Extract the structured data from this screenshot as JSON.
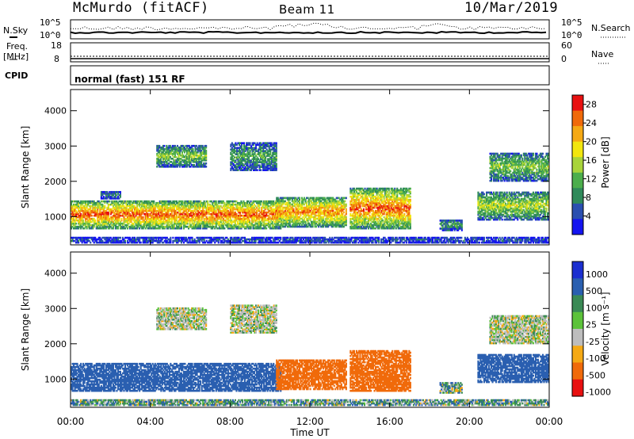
{
  "header": {
    "station": "McMurdo (fitACF)",
    "beam": "Beam 11",
    "date": "10/Mar/2019"
  },
  "top_panels": {
    "nsky_label": "N.Sky",
    "nsky_top_tick": "10^5",
    "nsky_bottom_tick": "10^0",
    "nsearch_label": "N.Search",
    "nsearch_top_tick": "10^5",
    "nsearch_bottom_tick": "10^0",
    "freq_label_1": "Freq.",
    "freq_label_2": "[MHz]",
    "freq_ticks": [
      "18",
      "8"
    ],
    "nave_label": "Nave",
    "nave_ticks": [
      "60",
      "0"
    ],
    "cpid_label": "CPID",
    "cpid_text": "normal (fast) 151 RF"
  },
  "chart_data": [
    {
      "type": "heatmap",
      "title": "",
      "xlabel": "Time UT",
      "ylabel": "Slant Range [km]",
      "x_ticks": [
        "00:00",
        "04:00",
        "08:00",
        "12:00",
        "16:00",
        "20:00",
        "00:00"
      ],
      "x_range_hours": [
        0,
        24
      ],
      "ylim": [
        200,
        4600
      ],
      "y_ticks": [
        1000,
        2000,
        3000,
        4000
      ],
      "colorbar": {
        "label": "Power [dB]",
        "ticks": [
          4,
          8,
          12,
          16,
          20,
          24,
          28
        ],
        "range": [
          0,
          30
        ],
        "colors": [
          "#1414f0",
          "#2a4fb0",
          "#2f8a5a",
          "#4cae4c",
          "#a8d43a",
          "#f2e60e",
          "#f5a914",
          "#f06a0a",
          "#e81010"
        ]
      },
      "echo_regions": [
        {
          "t0": 0.0,
          "t1": 10.5,
          "rmin": 650,
          "rmax": 1450,
          "level": 24
        },
        {
          "t0": 10.3,
          "t1": 13.8,
          "rmin": 700,
          "rmax": 1550,
          "level": 22
        },
        {
          "t0": 14.0,
          "t1": 17.0,
          "rmin": 650,
          "rmax": 1800,
          "level": 24
        },
        {
          "t0": 18.5,
          "t1": 19.6,
          "rmin": 600,
          "rmax": 900,
          "level": 10
        },
        {
          "t0": 20.4,
          "t1": 24.0,
          "rmin": 900,
          "rmax": 1700,
          "level": 15
        },
        {
          "t0": 1.5,
          "t1": 2.5,
          "rmin": 1500,
          "rmax": 1700,
          "level": 8
        },
        {
          "t0": 4.3,
          "t1": 6.8,
          "rmin": 2400,
          "rmax": 3000,
          "level": 13
        },
        {
          "t0": 8.0,
          "t1": 10.3,
          "rmin": 2300,
          "rmax": 3100,
          "level": 10
        },
        {
          "t0": 21.0,
          "t1": 24.0,
          "rmin": 2000,
          "rmax": 2800,
          "level": 13
        },
        {
          "t0": 0.0,
          "t1": 24.0,
          "rmin": 250,
          "rmax": 400,
          "level": 5
        }
      ]
    },
    {
      "type": "heatmap",
      "title": "",
      "xlabel": "Time UT",
      "ylabel": "Slant Range [km]",
      "x_ticks": [
        "00:00",
        "04:00",
        "08:00",
        "12:00",
        "16:00",
        "20:00",
        "00:00"
      ],
      "x_range_hours": [
        0,
        24
      ],
      "ylim": [
        200,
        4600
      ],
      "y_ticks": [
        1000,
        2000,
        3000,
        4000
      ],
      "colorbar": {
        "label": "Velocity [m s⁻¹]",
        "ticks": [
          "1000",
          "500",
          "100",
          "25",
          "-25",
          "-100",
          "-500",
          "-1000"
        ],
        "colors": [
          "#1b2fd0",
          "#2a5fb0",
          "#3a8a55",
          "#5cc23a",
          "#bdbdbd",
          "#f5a914",
          "#f06a0a",
          "#e81010"
        ]
      },
      "echo_regions": [
        {
          "t0": 0.0,
          "t1": 10.5,
          "rmin": 650,
          "rmax": 1450,
          "velocity": 300
        },
        {
          "t0": 10.3,
          "t1": 13.8,
          "rmin": 700,
          "rmax": 1550,
          "velocity": -200
        },
        {
          "t0": 14.0,
          "t1": 17.0,
          "rmin": 650,
          "rmax": 1800,
          "velocity": -200
        },
        {
          "t0": 18.5,
          "t1": 19.6,
          "rmin": 600,
          "rmax": 900,
          "velocity": 60
        },
        {
          "t0": 20.4,
          "t1": 24.0,
          "rmin": 900,
          "rmax": 1700,
          "velocity": 200
        },
        {
          "t0": 4.3,
          "t1": 6.8,
          "rmin": 2400,
          "rmax": 3000,
          "velocity": 0
        },
        {
          "t0": 8.0,
          "t1": 10.3,
          "rmin": 2300,
          "rmax": 3100,
          "velocity": 0
        },
        {
          "t0": 21.0,
          "t1": 24.0,
          "rmin": 2000,
          "rmax": 2800,
          "velocity": 0
        },
        {
          "t0": 0.0,
          "t1": 24.0,
          "rmin": 250,
          "rmax": 400,
          "velocity": 60
        }
      ]
    }
  ]
}
